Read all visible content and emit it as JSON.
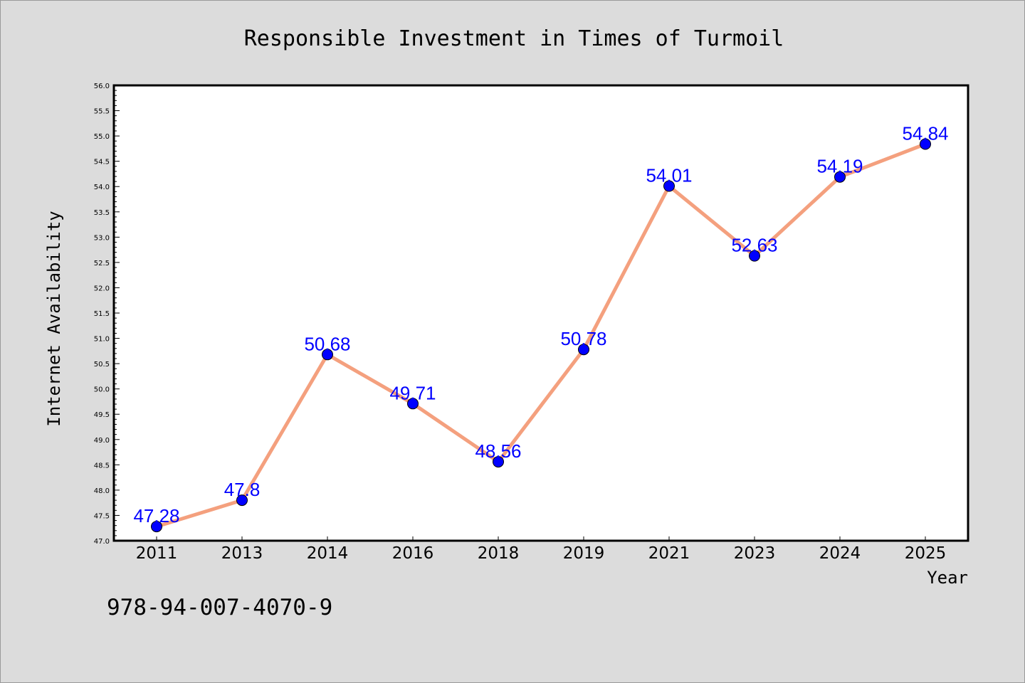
{
  "chart_data": {
    "type": "line",
    "title": "Responsible Investment in Times of Turmoil",
    "xlabel": "Year",
    "ylabel": "Internet Availability",
    "categories": [
      "2011",
      "2013",
      "2014",
      "2016",
      "2018",
      "2019",
      "2021",
      "2023",
      "2024",
      "2025"
    ],
    "series": [
      {
        "values": [
          47.28,
          47.8,
          50.68,
          49.71,
          48.56,
          50.78,
          54.01,
          52.63,
          54.19,
          54.84
        ],
        "labels": [
          "47.28",
          "47.8",
          "50.68",
          "49.71",
          "48.56",
          "50.78",
          "54.01",
          "52.63",
          "54.19",
          "54.84"
        ]
      }
    ],
    "ylim": [
      47.0,
      56.0
    ],
    "ytick_step": 0.5,
    "grid": false,
    "legend": "none",
    "colors": {
      "line": "#f4a07e",
      "marker": "#0000ff",
      "data_label": "#0000ff",
      "plot_background": "#ffffff",
      "figure_background": "#dcdcdc"
    }
  },
  "annotation": "978-94-007-4070-9"
}
